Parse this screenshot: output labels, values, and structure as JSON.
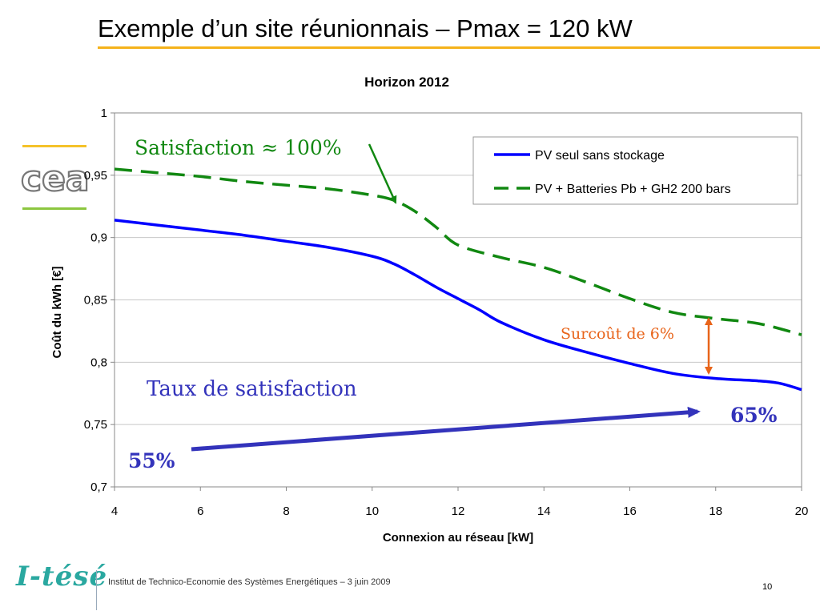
{
  "slide": {
    "title": "Exemple d’un site réunionnais – Pmax = 120 kW",
    "footer": "Institut de Technico-Economie des Systèmes Energétiques  –  3 juin 2009",
    "page_number": "10",
    "logo_top": "cea",
    "logo_bottom": "I-tésé"
  },
  "colors": {
    "title_rule": "#f5b21a",
    "series_pv": "#0000ff",
    "series_pv_storage": "#118811",
    "satisfaction_annotation": "#118811",
    "surcout_annotation": "#e8641a",
    "taux_annotation": "#3333bb"
  },
  "chart_data": {
    "type": "line",
    "title": "Horizon 2012",
    "xlabel": "Connexion au réseau [kW]",
    "ylabel": "Coût du kWh [€]",
    "xlim": [
      4,
      20
    ],
    "ylim": [
      0.7,
      1
    ],
    "x_ticks": [
      "4",
      "6",
      "8",
      "10",
      "12",
      "14",
      "16",
      "18",
      "20"
    ],
    "y_ticks": [
      "0,7",
      "0,75",
      "0,8",
      "0,85",
      "0,9",
      "0,95",
      "1"
    ],
    "grid": "horizontal",
    "legend_position": "top-right",
    "series": [
      {
        "name": "PV seul sans stockage",
        "style": "solid",
        "x": [
          4,
          5,
          6,
          7,
          8,
          9,
          10,
          10.5,
          11,
          11.5,
          12,
          12.5,
          13,
          14,
          15,
          16,
          17,
          18,
          19,
          19.5,
          20
        ],
        "y": [
          0.914,
          0.91,
          0.906,
          0.902,
          0.897,
          0.892,
          0.885,
          0.879,
          0.87,
          0.86,
          0.851,
          0.842,
          0.832,
          0.818,
          0.808,
          0.799,
          0.791,
          0.787,
          0.785,
          0.783,
          0.778
        ]
      },
      {
        "name": "PV + Batteries Pb + GH2 200 bars",
        "style": "dashed",
        "x": [
          4,
          5,
          6,
          7,
          8,
          9,
          10,
          10.5,
          11,
          11.5,
          12,
          13,
          14,
          15,
          16,
          17,
          18,
          19,
          20
        ],
        "y": [
          0.955,
          0.952,
          0.949,
          0.945,
          0.942,
          0.939,
          0.934,
          0.93,
          0.921,
          0.908,
          0.894,
          0.884,
          0.876,
          0.864,
          0.851,
          0.84,
          0.835,
          0.831,
          0.822
        ]
      }
    ],
    "annotations": {
      "satisfaction": "Satisfaction ≈ 100%",
      "surcout": "Surcoût de 6%",
      "taux": "Taux de satisfaction",
      "pct_start": "55%",
      "pct_end": "65%"
    }
  }
}
